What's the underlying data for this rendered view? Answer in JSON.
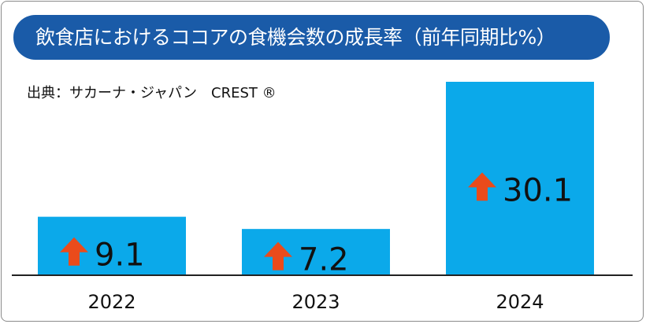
{
  "header": {
    "title": "飲食店におけるココアの食機会数の成長率（前年同期比%）",
    "source": "出典：サカーナ・ジャパン　CREST ®"
  },
  "colors": {
    "title_bg": "#1a5ba8",
    "bar": "#0ba9ea",
    "arrow": "#ea4b1b"
  },
  "chart_data": {
    "type": "bar",
    "title": "飲食店におけるココアの食機会数の成長率（前年同期比%）",
    "categories": [
      "2022",
      "2023",
      "2024"
    ],
    "values": [
      9.1,
      7.2,
      30.1
    ],
    "data_labels": [
      "9.1",
      "7.2",
      "30.1"
    ],
    "label_icon": "up-arrow-icon",
    "ylim": [
      0,
      35
    ],
    "grid": false,
    "legend": "none"
  }
}
